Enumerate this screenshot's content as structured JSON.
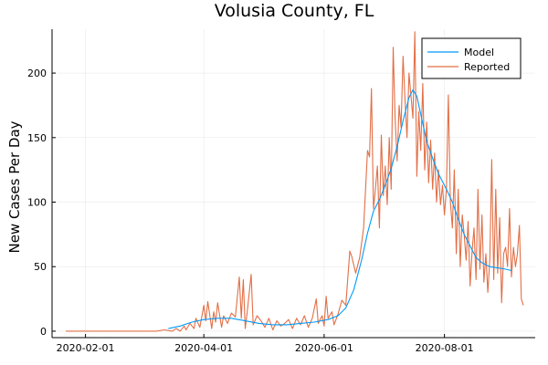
{
  "chart_data": {
    "type": "line",
    "title": "Volusia County, FL",
    "xlabel": "",
    "ylabel": "New Cases Per Day",
    "xlim": [
      "2020-01-22",
      "2020-09-10"
    ],
    "ylim": [
      -5,
      234
    ],
    "x_ticks": [
      "2020-02-01",
      "2020-04-01",
      "2020-06-01",
      "2020-08-01"
    ],
    "y_ticks": [
      0,
      50,
      100,
      150,
      200
    ],
    "grid": true,
    "legend_position": "top-right",
    "series": [
      {
        "name": "Model",
        "color": "#009AFA",
        "points": [
          [
            "2020-03-14",
            2
          ],
          [
            "2020-03-20",
            4
          ],
          [
            "2020-03-26",
            7
          ],
          [
            "2020-04-01",
            9
          ],
          [
            "2020-04-08",
            10
          ],
          [
            "2020-04-15",
            10
          ],
          [
            "2020-04-22",
            8
          ],
          [
            "2020-04-29",
            6
          ],
          [
            "2020-05-06",
            5
          ],
          [
            "2020-05-13",
            5
          ],
          [
            "2020-05-20",
            6
          ],
          [
            "2020-05-27",
            7
          ],
          [
            "2020-06-03",
            9
          ],
          [
            "2020-06-08",
            12
          ],
          [
            "2020-06-12",
            18
          ],
          [
            "2020-06-16",
            32
          ],
          [
            "2020-06-20",
            55
          ],
          [
            "2020-06-23",
            76
          ],
          [
            "2020-06-26",
            93
          ],
          [
            "2020-06-29",
            102
          ],
          [
            "2020-07-02",
            113
          ],
          [
            "2020-07-05",
            126
          ],
          [
            "2020-07-08",
            143
          ],
          [
            "2020-07-11",
            163
          ],
          [
            "2020-07-14",
            181
          ],
          [
            "2020-07-16",
            187
          ],
          [
            "2020-07-18",
            182
          ],
          [
            "2020-07-20",
            168
          ],
          [
            "2020-07-23",
            147
          ],
          [
            "2020-07-26",
            134
          ],
          [
            "2020-07-29",
            122
          ],
          [
            "2020-08-02",
            110
          ],
          [
            "2020-08-05",
            100
          ],
          [
            "2020-08-08",
            87
          ],
          [
            "2020-08-11",
            75
          ],
          [
            "2020-08-14",
            66
          ],
          [
            "2020-08-17",
            57
          ],
          [
            "2020-08-20",
            53
          ],
          [
            "2020-08-24",
            50
          ],
          [
            "2020-08-28",
            49
          ],
          [
            "2020-09-01",
            48
          ],
          [
            "2020-09-04",
            47
          ]
        ]
      },
      {
        "name": "Reported",
        "color": "#E26F46",
        "points": [
          [
            "2020-01-22",
            0
          ],
          [
            "2020-02-10",
            0
          ],
          [
            "2020-03-01",
            0
          ],
          [
            "2020-03-08",
            0
          ],
          [
            "2020-03-12",
            1
          ],
          [
            "2020-03-16",
            0
          ],
          [
            "2020-03-18",
            2
          ],
          [
            "2020-03-20",
            0
          ],
          [
            "2020-03-22",
            4
          ],
          [
            "2020-03-23",
            1
          ],
          [
            "2020-03-25",
            6
          ],
          [
            "2020-03-27",
            2
          ],
          [
            "2020-03-28",
            10
          ],
          [
            "2020-03-30",
            3
          ],
          [
            "2020-04-01",
            20
          ],
          [
            "2020-04-02",
            8
          ],
          [
            "2020-04-03",
            23
          ],
          [
            "2020-04-05",
            2
          ],
          [
            "2020-04-06",
            15
          ],
          [
            "2020-04-07",
            7
          ],
          [
            "2020-04-08",
            22
          ],
          [
            "2020-04-10",
            3
          ],
          [
            "2020-04-11",
            12
          ],
          [
            "2020-04-13",
            6
          ],
          [
            "2020-04-15",
            14
          ],
          [
            "2020-04-17",
            11
          ],
          [
            "2020-04-19",
            42
          ],
          [
            "2020-04-20",
            10
          ],
          [
            "2020-04-21",
            40
          ],
          [
            "2020-04-22",
            2
          ],
          [
            "2020-04-23",
            15
          ],
          [
            "2020-04-25",
            44
          ],
          [
            "2020-04-26",
            5
          ],
          [
            "2020-04-28",
            12
          ],
          [
            "2020-04-30",
            8
          ],
          [
            "2020-05-02",
            3
          ],
          [
            "2020-05-04",
            10
          ],
          [
            "2020-05-06",
            1
          ],
          [
            "2020-05-08",
            8
          ],
          [
            "2020-05-10",
            4
          ],
          [
            "2020-05-12",
            6
          ],
          [
            "2020-05-14",
            9
          ],
          [
            "2020-05-16",
            2
          ],
          [
            "2020-05-18",
            10
          ],
          [
            "2020-05-20",
            5
          ],
          [
            "2020-05-22",
            12
          ],
          [
            "2020-05-24",
            3
          ],
          [
            "2020-05-26",
            10
          ],
          [
            "2020-05-28",
            25
          ],
          [
            "2020-05-29",
            6
          ],
          [
            "2020-05-31",
            12
          ],
          [
            "2020-06-01",
            4
          ],
          [
            "2020-06-02",
            27
          ],
          [
            "2020-06-03",
            10
          ],
          [
            "2020-06-05",
            15
          ],
          [
            "2020-06-06",
            5
          ],
          [
            "2020-06-08",
            13
          ],
          [
            "2020-06-10",
            24
          ],
          [
            "2020-06-12",
            20
          ],
          [
            "2020-06-14",
            62
          ],
          [
            "2020-06-15",
            58
          ],
          [
            "2020-06-17",
            45
          ],
          [
            "2020-06-19",
            57
          ],
          [
            "2020-06-21",
            80
          ],
          [
            "2020-06-23",
            140
          ],
          [
            "2020-06-24",
            135
          ],
          [
            "2020-06-25",
            188
          ],
          [
            "2020-06-26",
            95
          ],
          [
            "2020-06-27",
            110
          ],
          [
            "2020-06-28",
            128
          ],
          [
            "2020-06-29",
            80
          ],
          [
            "2020-06-30",
            152
          ],
          [
            "2020-07-01",
            105
          ],
          [
            "2020-07-02",
            128
          ],
          [
            "2020-07-03",
            98
          ],
          [
            "2020-07-04",
            150
          ],
          [
            "2020-07-05",
            110
          ],
          [
            "2020-07-06",
            220
          ],
          [
            "2020-07-07",
            165
          ],
          [
            "2020-07-08",
            132
          ],
          [
            "2020-07-09",
            175
          ],
          [
            "2020-07-10",
            158
          ],
          [
            "2020-07-11",
            213
          ],
          [
            "2020-07-12",
            180
          ],
          [
            "2020-07-13",
            150
          ],
          [
            "2020-07-14",
            200
          ],
          [
            "2020-07-15",
            183
          ],
          [
            "2020-07-16",
            165
          ],
          [
            "2020-07-17",
            232
          ],
          [
            "2020-07-18",
            120
          ],
          [
            "2020-07-19",
            170
          ],
          [
            "2020-07-20",
            140
          ],
          [
            "2020-07-21",
            192
          ],
          [
            "2020-07-22",
            125
          ],
          [
            "2020-07-23",
            162
          ],
          [
            "2020-07-24",
            115
          ],
          [
            "2020-07-25",
            148
          ],
          [
            "2020-07-26",
            110
          ],
          [
            "2020-07-27",
            138
          ],
          [
            "2020-07-28",
            100
          ],
          [
            "2020-07-29",
            125
          ],
          [
            "2020-07-30",
            98
          ],
          [
            "2020-07-31",
            113
          ],
          [
            "2020-08-01",
            90
          ],
          [
            "2020-08-02",
            110
          ],
          [
            "2020-08-03",
            183
          ],
          [
            "2020-08-04",
            100
          ],
          [
            "2020-08-05",
            80
          ],
          [
            "2020-08-06",
            125
          ],
          [
            "2020-08-07",
            60
          ],
          [
            "2020-08-08",
            110
          ],
          [
            "2020-08-09",
            50
          ],
          [
            "2020-08-10",
            90
          ],
          [
            "2020-08-11",
            75
          ],
          [
            "2020-08-12",
            55
          ],
          [
            "2020-08-13",
            85
          ],
          [
            "2020-08-14",
            35
          ],
          [
            "2020-08-15",
            62
          ],
          [
            "2020-08-16",
            80
          ],
          [
            "2020-08-17",
            40
          ],
          [
            "2020-08-18",
            110
          ],
          [
            "2020-08-19",
            48
          ],
          [
            "2020-08-20",
            90
          ],
          [
            "2020-08-21",
            38
          ],
          [
            "2020-08-22",
            60
          ],
          [
            "2020-08-23",
            30
          ],
          [
            "2020-08-24",
            55
          ],
          [
            "2020-08-25",
            133
          ],
          [
            "2020-08-26",
            40
          ],
          [
            "2020-08-27",
            110
          ],
          [
            "2020-08-28",
            45
          ],
          [
            "2020-08-29",
            88
          ],
          [
            "2020-08-30",
            22
          ],
          [
            "2020-08-31",
            60
          ],
          [
            "2020-09-01",
            65
          ],
          [
            "2020-09-02",
            50
          ],
          [
            "2020-09-03",
            95
          ],
          [
            "2020-09-04",
            42
          ],
          [
            "2020-09-05",
            65
          ],
          [
            "2020-09-06",
            50
          ],
          [
            "2020-09-07",
            60
          ],
          [
            "2020-09-08",
            82
          ],
          [
            "2020-09-09",
            25
          ],
          [
            "2020-09-10",
            20
          ]
        ]
      }
    ]
  }
}
